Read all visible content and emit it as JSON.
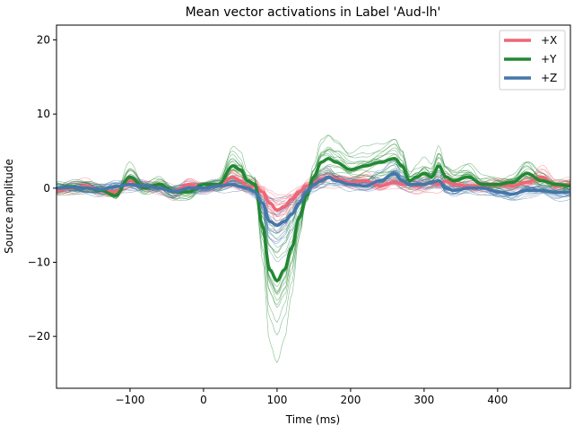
{
  "chart_data": {
    "type": "line",
    "title": "Mean vector activations in Label 'Aud-lh'",
    "xlabel": "Time (ms)",
    "ylabel": "Source amplitude",
    "xlim": [
      -200,
      499
    ],
    "ylim": [
      -27,
      22
    ],
    "xticks": [
      -100,
      0,
      100,
      200,
      300,
      400
    ],
    "yticks": [
      -20,
      -10,
      0,
      10,
      20
    ],
    "grid": false,
    "legend_position": "top-right",
    "x": [
      -200,
      -180,
      -160,
      -140,
      -120,
      -100,
      -80,
      -60,
      -40,
      -20,
      0,
      20,
      40,
      50,
      60,
      70,
      80,
      90,
      100,
      110,
      120,
      130,
      140,
      150,
      160,
      170,
      180,
      200,
      220,
      240,
      260,
      270,
      280,
      290,
      300,
      310,
      320,
      330,
      340,
      360,
      380,
      400,
      420,
      440,
      460,
      480,
      499
    ],
    "series": [
      {
        "name": "+X",
        "color": "#EE6677",
        "values": [
          -0.3,
          0,
          0.3,
          -0.3,
          -0.5,
          1,
          0.2,
          0,
          -0.5,
          0.5,
          0,
          0.3,
          1.5,
          1,
          0.2,
          0.3,
          -0.5,
          -2,
          -3,
          -2.5,
          -1.5,
          -0.5,
          0.3,
          0.8,
          1.2,
          1.5,
          1.3,
          0.8,
          1,
          0.3,
          0.8,
          0.5,
          0.5,
          0.3,
          0.5,
          0.8,
          0.5,
          1,
          0.5,
          0.3,
          0.3,
          0.5,
          0.3,
          0.8,
          1.5,
          0.3,
          0.5
        ]
      },
      {
        "name": "+Y",
        "color": "#228833",
        "values": [
          0,
          0.2,
          0,
          -0.3,
          -1,
          1.5,
          0,
          0.5,
          -0.5,
          -0.5,
          0.5,
          0.5,
          3,
          2.5,
          1,
          0.5,
          -5,
          -11,
          -12.5,
          -11,
          -8,
          -4,
          -1,
          1.5,
          3.5,
          4,
          3.5,
          2.5,
          3,
          3.5,
          4,
          3,
          1,
          1.5,
          2,
          1.5,
          3,
          1.5,
          1,
          1.5,
          0.5,
          0.5,
          0.8,
          2,
          1,
          0.5,
          0.3
        ]
      },
      {
        "name": "+Z",
        "color": "#4477AA",
        "values": [
          0,
          0.1,
          0,
          -0.2,
          0.2,
          0.5,
          0.3,
          0,
          -0.5,
          0,
          0,
          0.3,
          0.5,
          0.2,
          0,
          -0.5,
          -2,
          -4.5,
          -5,
          -4.5,
          -3.5,
          -2,
          -0.5,
          0.5,
          1,
          1.5,
          1,
          0.5,
          0.3,
          1,
          2,
          1,
          0.5,
          0.5,
          0.5,
          0.8,
          1,
          0,
          -0.3,
          0,
          0,
          -0.5,
          -0.8,
          -0.3,
          -0.3,
          -0.6,
          -0.5
        ]
      }
    ]
  }
}
